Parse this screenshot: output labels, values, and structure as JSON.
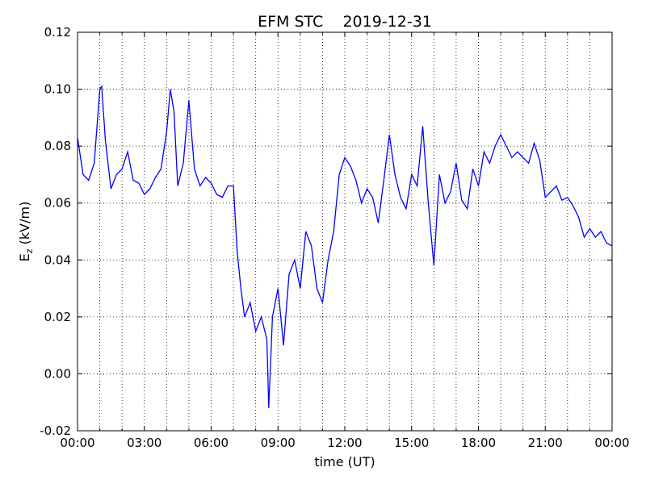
{
  "chart_data": {
    "type": "line",
    "title": "EFM STC    2019-12-31",
    "xlabel": "time (UT)",
    "ylabel": {
      "main": "E",
      "subscript": "z",
      "unit": " (kV/m)"
    },
    "xlim": [
      "2019-12-31T00:00",
      "2020-01-01T00:00"
    ],
    "ylim": [
      -0.02,
      0.12
    ],
    "x_ticks": [
      "00:00",
      "03:00",
      "06:00",
      "09:00",
      "12:00",
      "15:00",
      "18:00",
      "21:00",
      "00:00"
    ],
    "y_ticks": [
      "0.12",
      "0.10",
      "0.08",
      "0.06",
      "0.04",
      "0.02",
      "0.00",
      "-0.02"
    ],
    "grid": true,
    "line_color": "#0000ff",
    "series": [
      {
        "x": [
          "00:00",
          "00:15",
          "00:30",
          "00:45",
          "01:00",
          "01:05",
          "01:15",
          "01:30",
          "01:45",
          "02:00",
          "02:15",
          "02:30",
          "02:45",
          "03:00",
          "03:15",
          "03:30",
          "03:45",
          "04:00",
          "04:10",
          "04:20",
          "04:30",
          "04:45",
          "05:00",
          "05:15",
          "05:30",
          "05:45",
          "06:00",
          "06:15",
          "06:30",
          "06:45",
          "07:00",
          "07:10",
          "07:20",
          "07:30",
          "07:45",
          "08:00",
          "08:15",
          "08:30",
          "08:35",
          "08:45",
          "09:00",
          "09:15",
          "09:30",
          "09:45",
          "10:00",
          "10:15",
          "10:30",
          "10:45",
          "11:00",
          "11:15",
          "11:30",
          "11:45",
          "12:00",
          "12:15",
          "12:30",
          "12:45",
          "13:00",
          "13:15",
          "13:30",
          "13:45",
          "14:00",
          "14:15",
          "14:30",
          "14:45",
          "15:00",
          "15:15",
          "15:30",
          "15:45",
          "16:00",
          "16:15",
          "16:30",
          "16:45",
          "17:00",
          "17:15",
          "17:30",
          "17:45",
          "18:00",
          "18:15",
          "18:30",
          "18:45",
          "19:00",
          "19:15",
          "19:30",
          "19:45",
          "20:00",
          "20:15",
          "20:30",
          "20:45",
          "21:00",
          "21:15",
          "21:30",
          "21:45",
          "22:00",
          "22:15",
          "22:30",
          "22:45",
          "23:00",
          "23:15",
          "23:30",
          "23:45",
          "23:59"
        ],
        "y": [
          0.083,
          0.07,
          0.068,
          0.074,
          0.1,
          0.101,
          0.082,
          0.065,
          0.07,
          0.072,
          0.078,
          0.068,
          0.067,
          0.063,
          0.065,
          0.069,
          0.072,
          0.085,
          0.1,
          0.092,
          0.066,
          0.074,
          0.096,
          0.072,
          0.066,
          0.069,
          0.067,
          0.063,
          0.062,
          0.066,
          0.066,
          0.043,
          0.03,
          0.02,
          0.025,
          0.015,
          0.02,
          0.012,
          -0.012,
          0.02,
          0.03,
          0.01,
          0.035,
          0.04,
          0.03,
          0.05,
          0.045,
          0.03,
          0.025,
          0.04,
          0.05,
          0.07,
          0.076,
          0.073,
          0.068,
          0.06,
          0.065,
          0.062,
          0.053,
          0.068,
          0.084,
          0.07,
          0.062,
          0.058,
          0.07,
          0.066,
          0.087,
          0.06,
          0.038,
          0.07,
          0.06,
          0.064,
          0.074,
          0.061,
          0.058,
          0.072,
          0.066,
          0.078,
          0.074,
          0.08,
          0.084,
          0.08,
          0.076,
          0.078,
          0.076,
          0.074,
          0.081,
          0.075,
          0.062,
          0.064,
          0.066,
          0.061,
          0.062,
          0.059,
          0.055,
          0.048,
          0.051,
          0.048,
          0.05,
          0.046,
          0.045
        ]
      }
    ]
  }
}
